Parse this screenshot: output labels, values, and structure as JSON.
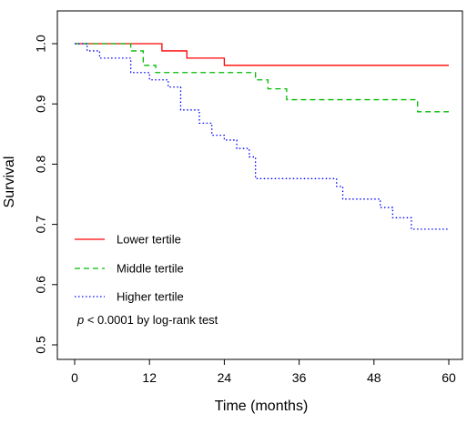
{
  "chart_data": {
    "type": "line",
    "step": true,
    "xlabel": "Time (months)",
    "ylabel": "Survival",
    "xlim": [
      0,
      60
    ],
    "ylim": [
      0.5,
      1.0
    ],
    "xticks": [
      "0",
      "12",
      "24",
      "36",
      "48",
      "60"
    ],
    "yticks": [
      "0.5",
      "0.6",
      "0.7",
      "0.8",
      "0.9",
      "1.0"
    ],
    "grid": false,
    "legend_position": "left",
    "annotation": {
      "italic": "p",
      "rest": " < 0.0001 by log-rank test"
    },
    "series": [
      {
        "name": "Lower tertile",
        "color": "#ff0000",
        "dash": "solid",
        "points": [
          [
            0,
            1.0
          ],
          [
            14,
            0.988
          ],
          [
            18,
            0.976
          ],
          [
            24,
            0.964
          ],
          [
            60,
            0.964
          ]
        ]
      },
      {
        "name": "Middle tertile",
        "color": "#00bb00",
        "dash": "dashed",
        "points": [
          [
            0,
            1.0
          ],
          [
            9,
            0.988
          ],
          [
            11,
            0.964
          ],
          [
            13,
            0.952
          ],
          [
            29,
            0.94
          ],
          [
            31,
            0.925
          ],
          [
            34,
            0.907
          ],
          [
            55,
            0.887
          ],
          [
            60,
            0.887
          ]
        ]
      },
      {
        "name": "Higher tertile",
        "color": "#0000ff",
        "dash": "dotted",
        "points": [
          [
            0,
            1.0
          ],
          [
            2,
            0.988
          ],
          [
            4,
            0.976
          ],
          [
            9,
            0.952
          ],
          [
            12,
            0.94
          ],
          [
            15,
            0.928
          ],
          [
            17,
            0.89
          ],
          [
            20,
            0.868
          ],
          [
            22,
            0.848
          ],
          [
            24,
            0.84
          ],
          [
            26,
            0.826
          ],
          [
            28,
            0.812
          ],
          [
            29,
            0.776
          ],
          [
            42,
            0.763
          ],
          [
            43,
            0.742
          ],
          [
            49,
            0.728
          ],
          [
            51,
            0.711
          ],
          [
            54,
            0.692
          ],
          [
            60,
            0.692
          ]
        ]
      }
    ]
  }
}
